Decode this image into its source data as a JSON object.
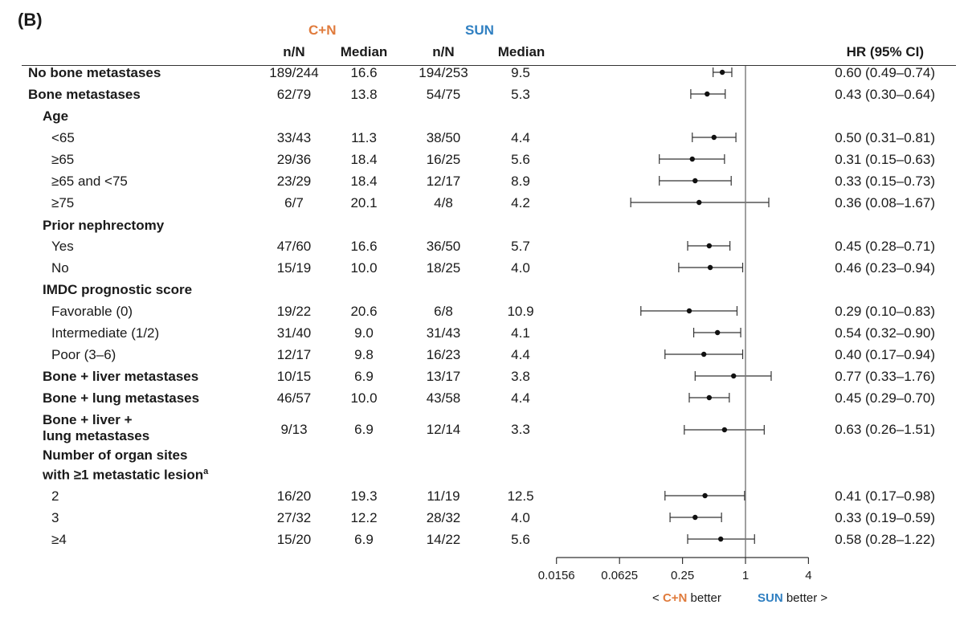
{
  "panel_label": "(B)",
  "group_headers": {
    "cn": "C+N",
    "sun": "SUN"
  },
  "column_headers": {
    "cn_nN": "n/N",
    "cn_median": "Median",
    "sun_nN": "n/N",
    "sun_median": "Median",
    "hr": "HR (95% CI)"
  },
  "colors": {
    "cn": "#e07b3c",
    "sun": "#2f7fc1",
    "ink": "#1a1a1a"
  },
  "legend": {
    "left_prefix": "< ",
    "left_group": "C+N",
    "left_suffix": " better",
    "right_group": "SUN",
    "right_suffix": " better >"
  },
  "chart_data": {
    "type": "forest",
    "x_scale": "log2",
    "x_ticks": [
      0.0156,
      0.0625,
      0.25,
      1,
      4
    ],
    "x_tick_labels": [
      "0.0156",
      "0.0625",
      "0.25",
      "1",
      "4"
    ],
    "reference_line": 1,
    "rows": [
      {
        "label": "No bone metastases",
        "level": 0,
        "bold": true,
        "cn_nN": "189/244",
        "cn_median": "16.6",
        "sun_nN": "194/253",
        "sun_median": "9.5",
        "hr": 0.6,
        "lo": 0.49,
        "hi": 0.74,
        "hr_text": "0.60 (0.49–0.74)"
      },
      {
        "label": "Bone metastases",
        "level": 0,
        "bold": true,
        "cn_nN": "62/79",
        "cn_median": "13.8",
        "sun_nN": "54/75",
        "sun_median": "5.3",
        "hr": 0.43,
        "lo": 0.3,
        "hi": 0.64,
        "hr_text": "0.43 (0.30–0.64)"
      },
      {
        "label": "Age",
        "level": 1,
        "bold": true,
        "header": true
      },
      {
        "label": "<65",
        "level": 2,
        "bold": false,
        "cn_nN": "33/43",
        "cn_median": "11.3",
        "sun_nN": "38/50",
        "sun_median": "4.4",
        "hr": 0.5,
        "lo": 0.31,
        "hi": 0.81,
        "hr_text": "0.50 (0.31–0.81)"
      },
      {
        "label": "≥65",
        "level": 2,
        "bold": false,
        "cn_nN": "29/36",
        "cn_median": "18.4",
        "sun_nN": "16/25",
        "sun_median": "5.6",
        "hr": 0.31,
        "lo": 0.15,
        "hi": 0.63,
        "hr_text": "0.31 (0.15–0.63)"
      },
      {
        "label": "≥65 and <75",
        "level": 2,
        "bold": false,
        "cn_nN": "23/29",
        "cn_median": "18.4",
        "sun_nN": "12/17",
        "sun_median": "8.9",
        "hr": 0.33,
        "lo": 0.15,
        "hi": 0.73,
        "hr_text": "0.33 (0.15–0.73)"
      },
      {
        "label": "≥75",
        "level": 2,
        "bold": false,
        "cn_nN": "6/7",
        "cn_median": "20.1",
        "sun_nN": "4/8",
        "sun_median": "4.2",
        "hr": 0.36,
        "lo": 0.08,
        "hi": 1.67,
        "hr_text": "0.36 (0.08–1.67)"
      },
      {
        "label": "Prior nephrectomy",
        "level": 1,
        "bold": true,
        "header": true
      },
      {
        "label": "Yes",
        "level": 2,
        "bold": false,
        "cn_nN": "47/60",
        "cn_median": "16.6",
        "sun_nN": "36/50",
        "sun_median": "5.7",
        "hr": 0.45,
        "lo": 0.28,
        "hi": 0.71,
        "hr_text": "0.45 (0.28–0.71)"
      },
      {
        "label": "No",
        "level": 2,
        "bold": false,
        "cn_nN": "15/19",
        "cn_median": "10.0",
        "sun_nN": "18/25",
        "sun_median": "4.0",
        "hr": 0.46,
        "lo": 0.23,
        "hi": 0.94,
        "hr_text": "0.46 (0.23–0.94)"
      },
      {
        "label": "IMDC prognostic score",
        "level": 1,
        "bold": true,
        "header": true
      },
      {
        "label": "Favorable (0)",
        "level": 2,
        "bold": false,
        "cn_nN": "19/22",
        "cn_median": "20.6",
        "sun_nN": "6/8",
        "sun_median": "10.9",
        "hr": 0.29,
        "lo": 0.1,
        "hi": 0.83,
        "hr_text": "0.29 (0.10–0.83)"
      },
      {
        "label": "Intermediate (1/2)",
        "level": 2,
        "bold": false,
        "cn_nN": "31/40",
        "cn_median": "9.0",
        "sun_nN": "31/43",
        "sun_median": "4.1",
        "hr": 0.54,
        "lo": 0.32,
        "hi": 0.9,
        "hr_text": "0.54 (0.32–0.90)"
      },
      {
        "label": "Poor (3–6)",
        "level": 2,
        "bold": false,
        "cn_nN": "12/17",
        "cn_median": "9.8",
        "sun_nN": "16/23",
        "sun_median": "4.4",
        "hr": 0.4,
        "lo": 0.17,
        "hi": 0.94,
        "hr_text": "0.40 (0.17–0.94)"
      },
      {
        "label": "Bone + liver metastases",
        "level": 1,
        "bold": true,
        "cn_nN": "10/15",
        "cn_median": "6.9",
        "sun_nN": "13/17",
        "sun_median": "3.8",
        "hr": 0.77,
        "lo": 0.33,
        "hi": 1.76,
        "hr_text": "0.77 (0.33–1.76)"
      },
      {
        "label": "Bone + lung metastases",
        "level": 1,
        "bold": true,
        "cn_nN": "46/57",
        "cn_median": "10.0",
        "sun_nN": "43/58",
        "sun_median": "4.4",
        "hr": 0.45,
        "lo": 0.29,
        "hi": 0.7,
        "hr_text": "0.45 (0.29–0.70)"
      },
      {
        "label": "Bone + liver +",
        "label2": "lung metastases",
        "level": 1,
        "bold": true,
        "tall": true,
        "cn_nN": "9/13",
        "cn_median": "6.9",
        "sun_nN": "12/14",
        "sun_median": "3.3",
        "hr": 0.63,
        "lo": 0.26,
        "hi": 1.51,
        "hr_text": "0.63 (0.26–1.51)"
      },
      {
        "label": "Number of organ sites",
        "label2": "with ≥1 metastatic lesion",
        "label2_sup": "a",
        "level": 1,
        "bold": true,
        "header": true,
        "tall": true
      },
      {
        "label": "2",
        "level": 2,
        "bold": false,
        "cn_nN": "16/20",
        "cn_median": "19.3",
        "sun_nN": "11/19",
        "sun_median": "12.5",
        "hr": 0.41,
        "lo": 0.17,
        "hi": 0.98,
        "hr_text": "0.41 (0.17–0.98)"
      },
      {
        "label": "3",
        "level": 2,
        "bold": false,
        "cn_nN": "27/32",
        "cn_median": "12.2",
        "sun_nN": "28/32",
        "sun_median": "4.0",
        "hr": 0.33,
        "lo": 0.19,
        "hi": 0.59,
        "hr_text": "0.33 (0.19–0.59)"
      },
      {
        "label": "≥4",
        "level": 2,
        "bold": false,
        "cn_nN": "15/20",
        "cn_median": "6.9",
        "sun_nN": "14/22",
        "sun_median": "5.6",
        "hr": 0.58,
        "lo": 0.28,
        "hi": 1.22,
        "hr_text": "0.58 (0.28–1.22)"
      }
    ]
  }
}
